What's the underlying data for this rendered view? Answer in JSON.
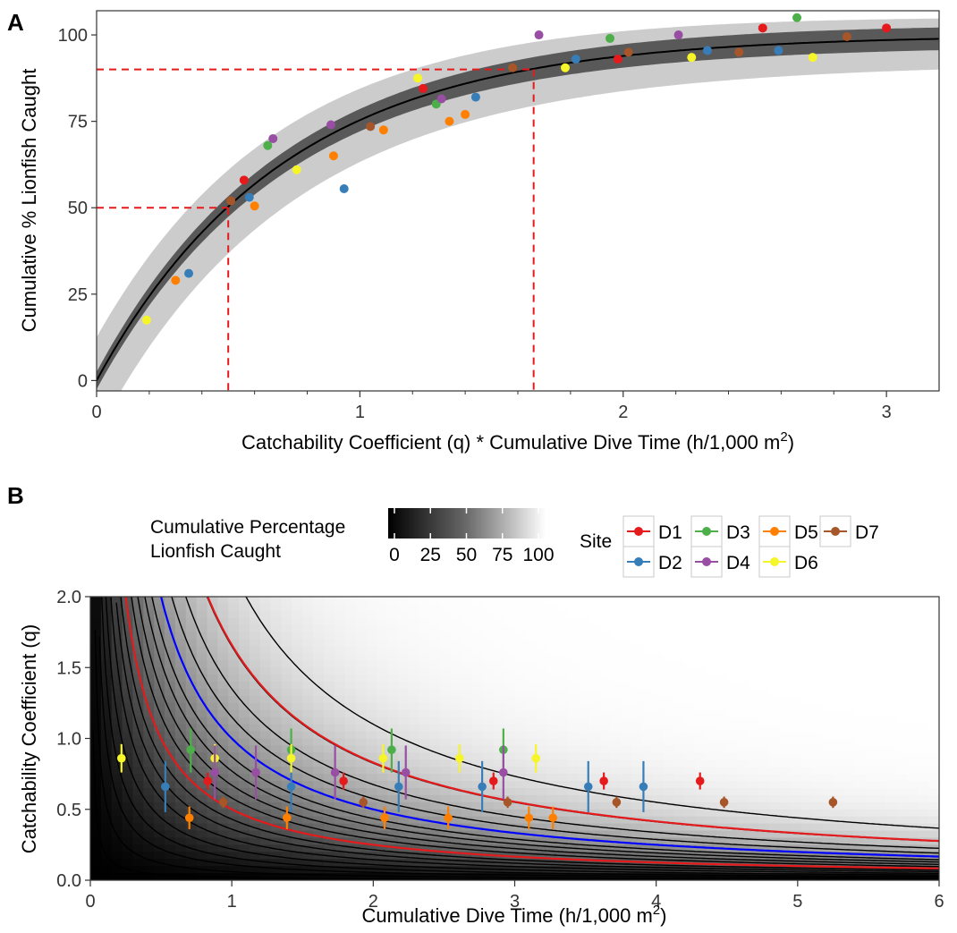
{
  "panel_a_tag": "A",
  "panel_b_tag": "B",
  "colors": {
    "D1": "#e41a1c",
    "D2": "#377eb8",
    "D3": "#4daf4a",
    "D4": "#984ea3",
    "D5": "#ff7f00",
    "D6": "#f5f52a",
    "D7": "#a65628",
    "ci_inner": "#595959",
    "ci_outer": "#cccccc",
    "ref_line": "#e41a1c",
    "contour": "#000000",
    "contour_red": "#e41a1c",
    "contour_blue": "#0000ff"
  },
  "chart_data": [
    {
      "type": "scatter",
      "panel": "A",
      "xlabel_main": "Catchability Coefficient (q) * Cumulative Dive Time (h/1,000 m",
      "xlabel_sup": "2",
      "xlabel_end": ")",
      "ylabel": "Cumulative % Lionfish Caught",
      "xlim": [
        0,
        3.2
      ],
      "ylim": [
        -3,
        107
      ],
      "x_ticks": [
        0,
        1,
        2,
        3
      ],
      "x_tick_labels": [
        "0",
        "1",
        "2",
        "3"
      ],
      "y_ticks": [
        0,
        25,
        50,
        75,
        100
      ],
      "y_tick_labels": [
        "0",
        "25",
        "50",
        "75",
        "100"
      ],
      "fit_curve": "100*(1-exp(-1.4*x))",
      "reference_lines": [
        {
          "y": 50,
          "x": 0.5
        },
        {
          "y": 90,
          "x": 1.66
        }
      ],
      "points": [
        {
          "site": "D6",
          "x": 0.19,
          "y": 17.5
        },
        {
          "site": "D5",
          "x": 0.3,
          "y": 29
        },
        {
          "site": "D2",
          "x": 0.35,
          "y": 31
        },
        {
          "site": "D7",
          "x": 0.51,
          "y": 52
        },
        {
          "site": "D1",
          "x": 0.56,
          "y": 58
        },
        {
          "site": "D2",
          "x": 0.58,
          "y": 53
        },
        {
          "site": "D5",
          "x": 0.6,
          "y": 50.5
        },
        {
          "site": "D3",
          "x": 0.65,
          "y": 68
        },
        {
          "site": "D4",
          "x": 0.67,
          "y": 70
        },
        {
          "site": "D6",
          "x": 0.76,
          "y": 61
        },
        {
          "site": "D4",
          "x": 0.89,
          "y": 74
        },
        {
          "site": "D5",
          "x": 0.9,
          "y": 65
        },
        {
          "site": "D2",
          "x": 0.94,
          "y": 55.5
        },
        {
          "site": "D7",
          "x": 1.04,
          "y": 73.5
        },
        {
          "site": "D5",
          "x": 1.09,
          "y": 72.5
        },
        {
          "site": "D6",
          "x": 1.22,
          "y": 87.5
        },
        {
          "site": "D1",
          "x": 1.24,
          "y": 84.5
        },
        {
          "site": "D3",
          "x": 1.29,
          "y": 80
        },
        {
          "site": "D4",
          "x": 1.31,
          "y": 81.5
        },
        {
          "site": "D5",
          "x": 1.34,
          "y": 75
        },
        {
          "site": "D5",
          "x": 1.4,
          "y": 77
        },
        {
          "site": "D2",
          "x": 1.44,
          "y": 82
        },
        {
          "site": "D7",
          "x": 1.58,
          "y": 90.5
        },
        {
          "site": "D4",
          "x": 1.68,
          "y": 100
        },
        {
          "site": "D6",
          "x": 1.78,
          "y": 90.5
        },
        {
          "site": "D2",
          "x": 1.82,
          "y": 93
        },
        {
          "site": "D3",
          "x": 1.95,
          "y": 99
        },
        {
          "site": "D1",
          "x": 1.98,
          "y": 93
        },
        {
          "site": "D7",
          "x": 2.02,
          "y": 95
        },
        {
          "site": "D4",
          "x": 2.21,
          "y": 100
        },
        {
          "site": "D6",
          "x": 2.26,
          "y": 93.5
        },
        {
          "site": "D2",
          "x": 2.32,
          "y": 95.5
        },
        {
          "site": "D7",
          "x": 2.44,
          "y": 95
        },
        {
          "site": "D1",
          "x": 2.53,
          "y": 102
        },
        {
          "site": "D2",
          "x": 2.59,
          "y": 95.5
        },
        {
          "site": "D3",
          "x": 2.66,
          "y": 105
        },
        {
          "site": "D6",
          "x": 2.72,
          "y": 93.5
        },
        {
          "site": "D7",
          "x": 2.85,
          "y": 99.5
        },
        {
          "site": "D1",
          "x": 3.0,
          "y": 102
        }
      ]
    },
    {
      "type": "heatmap",
      "panel": "B",
      "xlabel_main": "Cumulative Dive Time (h/1,000 m",
      "xlabel_sup": "2",
      "xlabel_end": ")",
      "ylabel": "Catchability Coefficient (q)",
      "xlim": [
        0,
        6
      ],
      "ylim": [
        0,
        2
      ],
      "x_ticks": [
        0,
        1,
        2,
        3,
        4,
        5,
        6
      ],
      "x_tick_labels": [
        "0",
        "1",
        "2",
        "3",
        "4",
        "5",
        "6"
      ],
      "y_ticks": [
        0,
        0.5,
        1,
        1.5,
        2
      ],
      "y_tick_labels": [
        "0.0",
        "0.5",
        "1.0",
        "1.5",
        "2.0"
      ],
      "surface": "100*(1-exp(-q*t))",
      "contour_products": [
        0.02,
        0.06,
        0.11,
        0.16,
        0.22,
        0.29,
        0.36,
        0.43,
        0.5,
        0.58,
        0.67,
        0.77,
        0.87,
        1.0,
        1.15,
        1.35,
        1.65,
        2.2
      ],
      "highlight_contours": [
        {
          "product": 0.5,
          "color": "red"
        },
        {
          "product": 1.0,
          "color": "blue"
        },
        {
          "product": 1.66,
          "color": "red"
        }
      ],
      "points": [
        {
          "site": "D6",
          "t": 0.22,
          "q": 0.86,
          "lo": 0.76,
          "hi": 0.96
        },
        {
          "site": "D2",
          "t": 0.53,
          "q": 0.66,
          "lo": 0.48,
          "hi": 0.84
        },
        {
          "site": "D5",
          "t": 0.7,
          "q": 0.44,
          "lo": 0.36,
          "hi": 0.52
        },
        {
          "site": "D3",
          "t": 0.71,
          "q": 0.92,
          "lo": 0.76,
          "hi": 1.07
        },
        {
          "site": "D1",
          "t": 0.83,
          "q": 0.7,
          "lo": 0.64,
          "hi": 0.76
        },
        {
          "site": "D6",
          "t": 0.88,
          "q": 0.86,
          "lo": 0.76,
          "hi": 0.96
        },
        {
          "site": "D4",
          "t": 0.88,
          "q": 0.76,
          "lo": 0.57,
          "hi": 0.95
        },
        {
          "site": "D7",
          "t": 0.94,
          "q": 0.55,
          "lo": 0.51,
          "hi": 0.59
        },
        {
          "site": "D4",
          "t": 1.17,
          "q": 0.76,
          "lo": 0.57,
          "hi": 0.95
        },
        {
          "site": "D5",
          "t": 1.39,
          "q": 0.44,
          "lo": 0.36,
          "hi": 0.52
        },
        {
          "site": "D3",
          "t": 1.42,
          "q": 0.92,
          "lo": 0.76,
          "hi": 1.07
        },
        {
          "site": "D2",
          "t": 1.42,
          "q": 0.66,
          "lo": 0.48,
          "hi": 0.84
        },
        {
          "site": "D6",
          "t": 1.42,
          "q": 0.86,
          "lo": 0.76,
          "hi": 0.96
        },
        {
          "site": "D4",
          "t": 1.73,
          "q": 0.76,
          "lo": 0.57,
          "hi": 0.95
        },
        {
          "site": "D1",
          "t": 1.79,
          "q": 0.7,
          "lo": 0.64,
          "hi": 0.76
        },
        {
          "site": "D7",
          "t": 1.93,
          "q": 0.55,
          "lo": 0.51,
          "hi": 0.59
        },
        {
          "site": "D6",
          "t": 2.07,
          "q": 0.86,
          "lo": 0.76,
          "hi": 0.96
        },
        {
          "site": "D5",
          "t": 2.08,
          "q": 0.44,
          "lo": 0.36,
          "hi": 0.52
        },
        {
          "site": "D3",
          "t": 2.13,
          "q": 0.92,
          "lo": 0.76,
          "hi": 1.07
        },
        {
          "site": "D2",
          "t": 2.18,
          "q": 0.66,
          "lo": 0.48,
          "hi": 0.84
        },
        {
          "site": "D4",
          "t": 2.23,
          "q": 0.76,
          "lo": 0.57,
          "hi": 0.95
        },
        {
          "site": "D5",
          "t": 2.53,
          "q": 0.44,
          "lo": 0.36,
          "hi": 0.52
        },
        {
          "site": "D6",
          "t": 2.61,
          "q": 0.86,
          "lo": 0.76,
          "hi": 0.96
        },
        {
          "site": "D2",
          "t": 2.77,
          "q": 0.66,
          "lo": 0.48,
          "hi": 0.84
        },
        {
          "site": "D1",
          "t": 2.85,
          "q": 0.7,
          "lo": 0.64,
          "hi": 0.76
        },
        {
          "site": "D3",
          "t": 2.92,
          "q": 0.92,
          "lo": 0.76,
          "hi": 1.07
        },
        {
          "site": "D4",
          "t": 2.92,
          "q": 0.76,
          "lo": 0.57,
          "hi": 0.95
        },
        {
          "site": "D7",
          "t": 2.95,
          "q": 0.55,
          "lo": 0.51,
          "hi": 0.59
        },
        {
          "site": "D5",
          "t": 3.1,
          "q": 0.44,
          "lo": 0.36,
          "hi": 0.52
        },
        {
          "site": "D6",
          "t": 3.15,
          "q": 0.86,
          "lo": 0.76,
          "hi": 0.96
        },
        {
          "site": "D5",
          "t": 3.27,
          "q": 0.44,
          "lo": 0.36,
          "hi": 0.52
        },
        {
          "site": "D2",
          "t": 3.52,
          "q": 0.66,
          "lo": 0.48,
          "hi": 0.84
        },
        {
          "site": "D1",
          "t": 3.63,
          "q": 0.7,
          "lo": 0.64,
          "hi": 0.76
        },
        {
          "site": "D7",
          "t": 3.72,
          "q": 0.55,
          "lo": 0.51,
          "hi": 0.59
        },
        {
          "site": "D2",
          "t": 3.91,
          "q": 0.66,
          "lo": 0.48,
          "hi": 0.84
        },
        {
          "site": "D1",
          "t": 4.31,
          "q": 0.7,
          "lo": 0.64,
          "hi": 0.76
        },
        {
          "site": "D7",
          "t": 4.48,
          "q": 0.55,
          "lo": 0.51,
          "hi": 0.59
        },
        {
          "site": "D7",
          "t": 5.25,
          "q": 0.55,
          "lo": 0.51,
          "hi": 0.59
        }
      ]
    }
  ],
  "legend": {
    "colorbar_title_line1": "Cumulative Percentage",
    "colorbar_title_line2": "Lionfish Caught",
    "colorbar_ticks": [
      0,
      25,
      50,
      75,
      100
    ],
    "colorbar_tick_labels": [
      "0",
      "25",
      "50",
      "75",
      "100"
    ],
    "site_title": "Site",
    "sites": [
      {
        "key": "D1",
        "label": "D1"
      },
      {
        "key": "D2",
        "label": "D2"
      },
      {
        "key": "D3",
        "label": "D3"
      },
      {
        "key": "D4",
        "label": "D4"
      },
      {
        "key": "D5",
        "label": "D5"
      },
      {
        "key": "D6",
        "label": "D6"
      },
      {
        "key": "D7",
        "label": "D7"
      }
    ]
  }
}
